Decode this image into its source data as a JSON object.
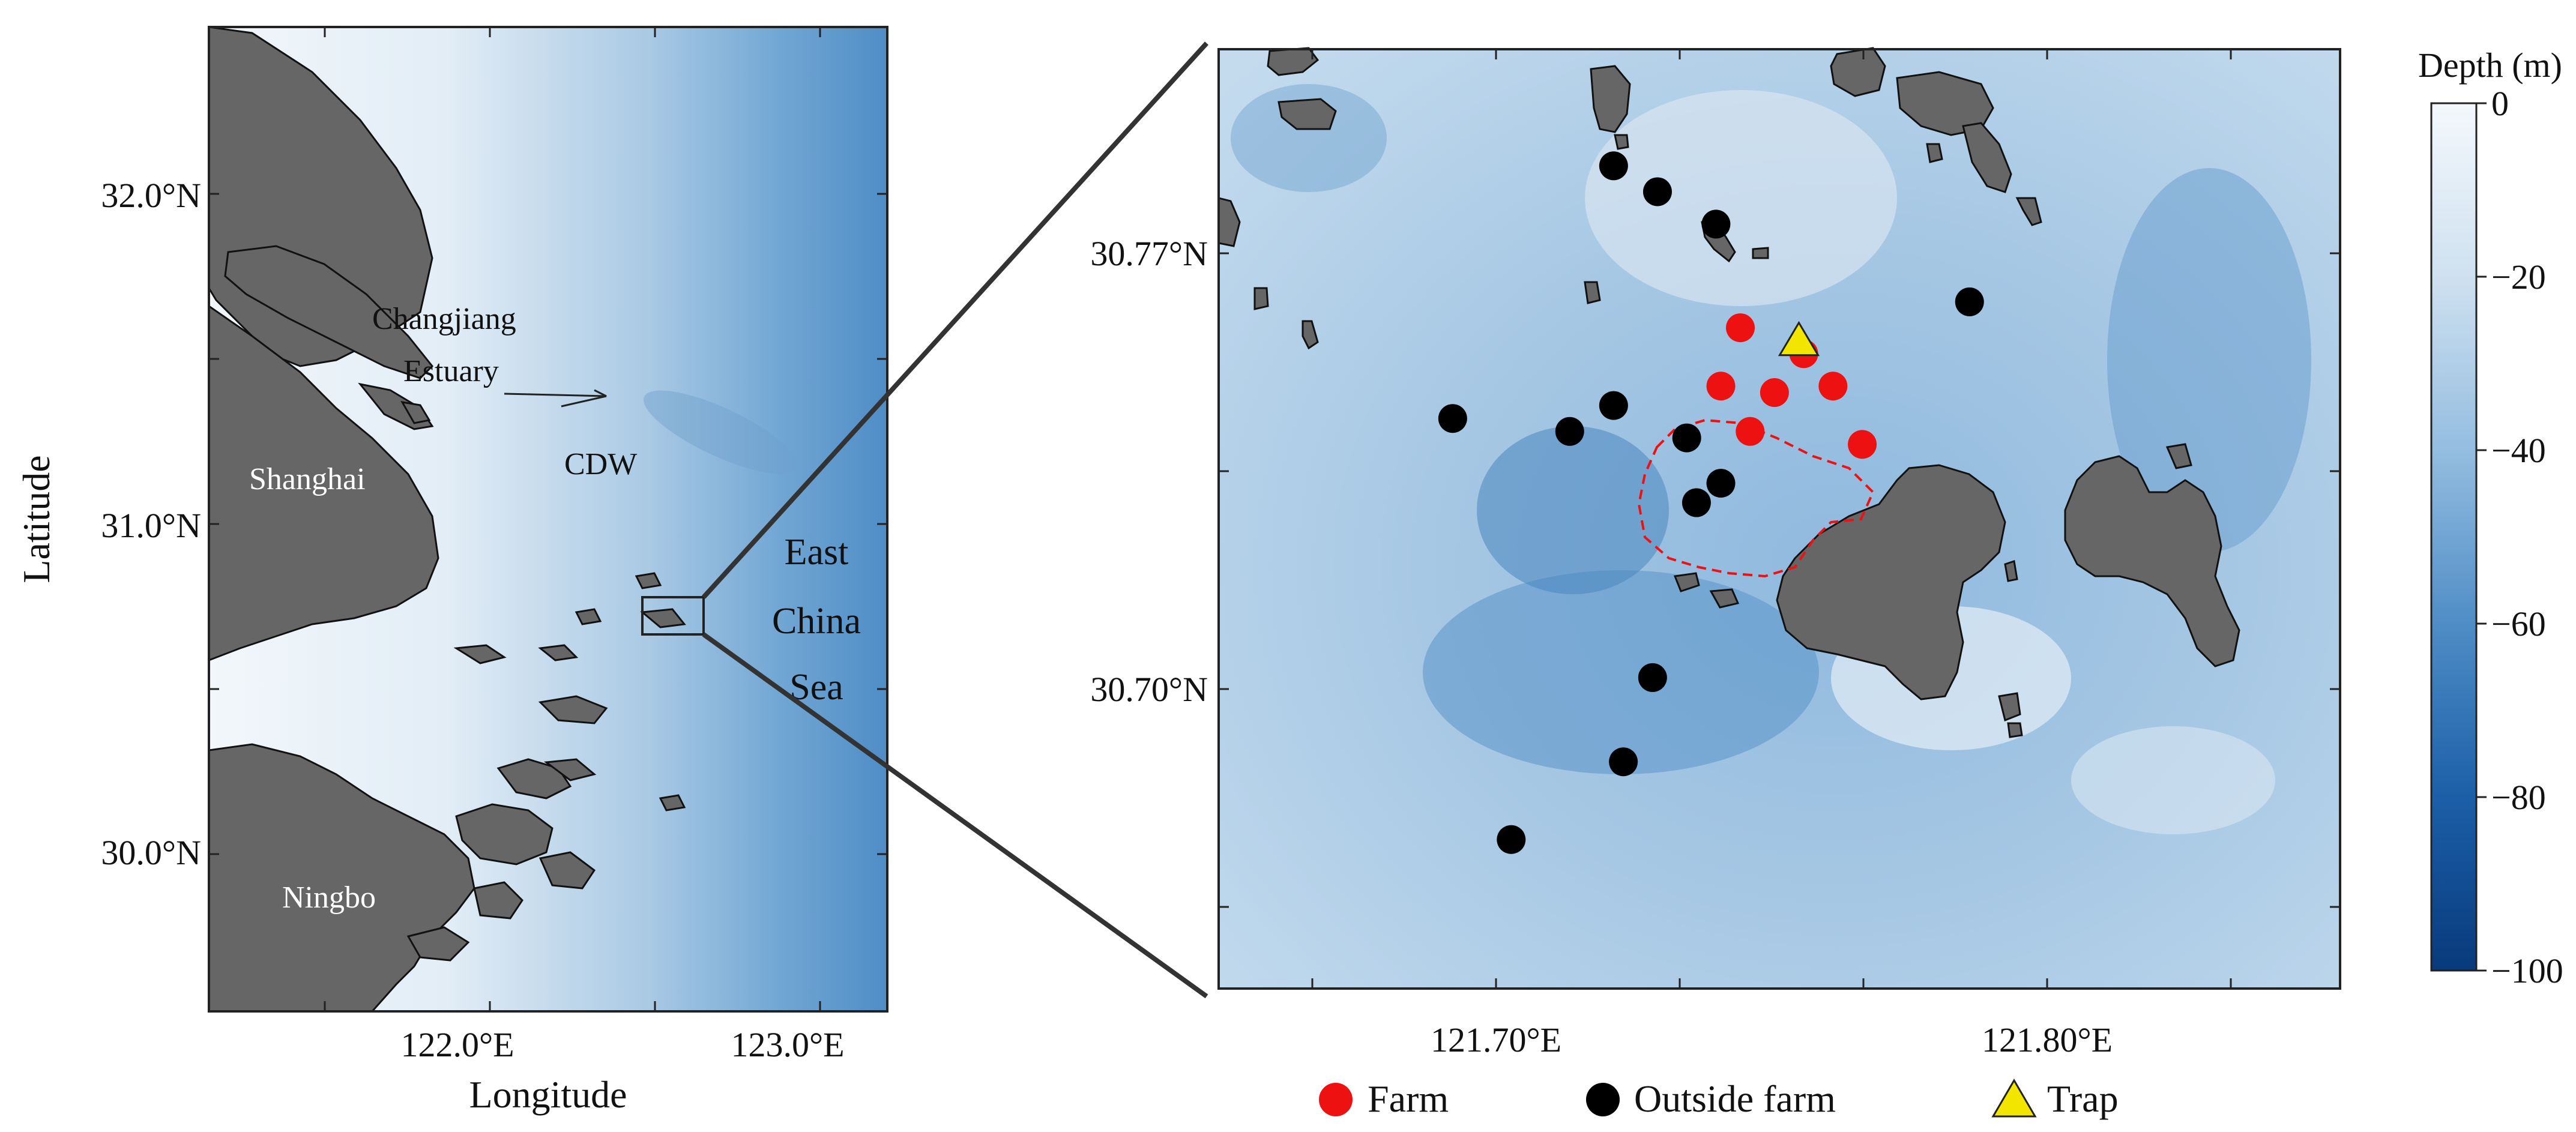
{
  "left_map": {
    "xlabel": "Longitude",
    "ylabel": "Latitude",
    "x_ticks": [
      "122.0°E",
      "123.0°E"
    ],
    "y_ticks": [
      "32.0°N",
      "31.0°N",
      "30.0°N"
    ],
    "labels": {
      "changjiang": "Changjiang",
      "estuary": "Estuary",
      "cdw": "CDW",
      "shanghai": "Shanghai",
      "ningbo": "Ningbo",
      "sea1": "East",
      "sea2": "China",
      "sea3": "Sea"
    }
  },
  "right_map": {
    "x_ticks": [
      "121.70°E",
      "121.80°E"
    ],
    "y_ticks": [
      "30.77°N",
      "30.70°N"
    ]
  },
  "colorbar": {
    "title": "Depth (m)",
    "ticks": [
      "0",
      "−20",
      "−40",
      "−60",
      "−80",
      "−100"
    ],
    "color_top": "#f4f8fc",
    "color_bottom": "#083a7c"
  },
  "legend": {
    "farm": "Farm",
    "outside": "Outside farm",
    "trap": "Trap",
    "farm_color": "#ee1111",
    "outside_color": "#000000",
    "trap_color": "#f2e600"
  },
  "chart_data": {
    "type": "scatter",
    "x_range": [
      121.63,
      121.86
    ],
    "y_range": [
      30.65,
      30.795
    ],
    "series": [
      {
        "name": "Farm",
        "points": [
          [
            121.737,
            30.752
          ],
          [
            121.75,
            30.748
          ],
          [
            121.733,
            30.743
          ],
          [
            121.744,
            30.742
          ],
          [
            121.756,
            30.743
          ],
          [
            121.739,
            30.736
          ],
          [
            121.762,
            30.734
          ]
        ]
      },
      {
        "name": "Outside farm",
        "points": [
          [
            121.711,
            30.777
          ],
          [
            121.72,
            30.773
          ],
          [
            121.732,
            30.768
          ],
          [
            121.784,
            30.756
          ],
          [
            121.678,
            30.738
          ],
          [
            121.702,
            30.736
          ],
          [
            121.711,
            30.74
          ],
          [
            121.726,
            30.735
          ],
          [
            121.733,
            30.728
          ],
          [
            121.728,
            30.725
          ],
          [
            121.719,
            30.698
          ],
          [
            121.713,
            30.685
          ],
          [
            121.69,
            30.673
          ]
        ]
      },
      {
        "name": "Trap",
        "points": [
          [
            121.749,
            30.75
          ]
        ]
      }
    ]
  }
}
